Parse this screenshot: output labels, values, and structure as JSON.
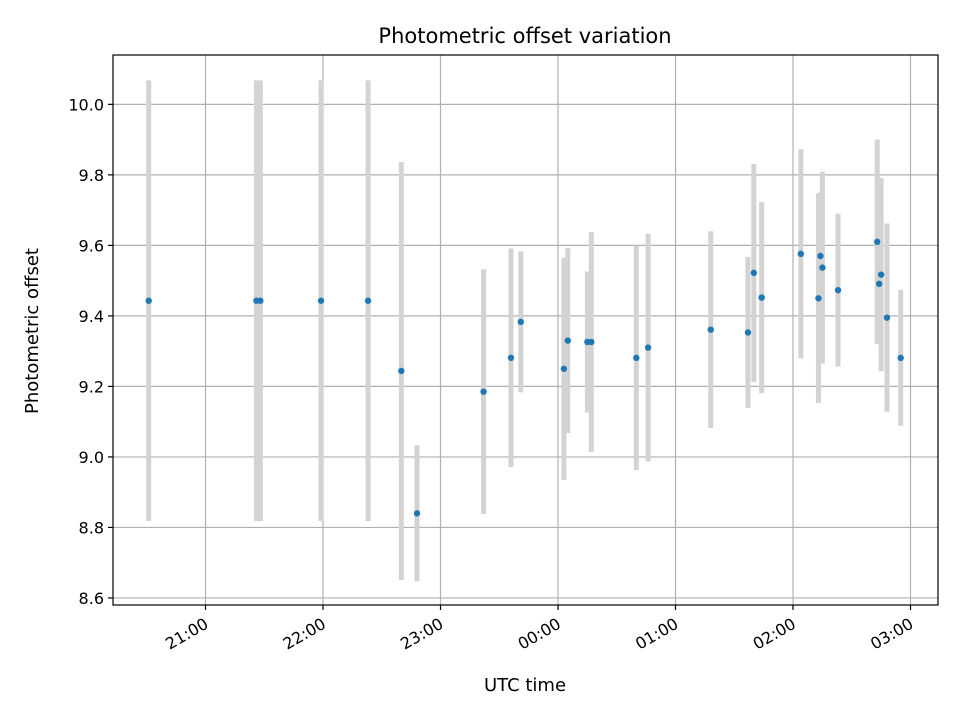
{
  "chart_data": {
    "type": "scatter",
    "title": "Photometric offset variation",
    "xlabel": "UTC time",
    "ylabel": "Photometric offset",
    "x_ticks": [
      "21:00",
      "22:00",
      "23:00",
      "00:00",
      "01:00",
      "02:00",
      "03:00"
    ],
    "y_ticks": [
      "8.6",
      "8.8",
      "9.0",
      "9.2",
      "9.4",
      "9.6",
      "9.8",
      "10.0"
    ],
    "ylim": [
      8.58,
      10.14
    ],
    "grid": true,
    "colors": {
      "marker": "#1f77b4",
      "errorbar": "#d3d3d3",
      "grid": "#b0b0b0"
    },
    "points": [
      {
        "t": "20:31",
        "y": 9.443,
        "yerr": 0.625
      },
      {
        "t": "21:26",
        "y": 9.443,
        "yerr": 0.625
      },
      {
        "t": "21:28",
        "y": 9.443,
        "yerr": 0.625
      },
      {
        "t": "21:59",
        "y": 9.443,
        "yerr": 0.625
      },
      {
        "t": "22:23",
        "y": 9.443,
        "yerr": 0.625
      },
      {
        "t": "22:40",
        "y": 9.244,
        "yerr": 0.593
      },
      {
        "t": "22:48",
        "y": 8.84,
        "yerr": 0.193
      },
      {
        "t": "23:22",
        "y": 9.185,
        "yerr": 0.347
      },
      {
        "t": "23:36",
        "y": 9.281,
        "yerr": 0.31
      },
      {
        "t": "23:41",
        "y": 9.383,
        "yerr": 0.2
      },
      {
        "t": "00:03",
        "y": 9.25,
        "yerr": 0.315
      },
      {
        "t": "00:05",
        "y": 9.33,
        "yerr": 0.262
      },
      {
        "t": "00:15",
        "y": 9.326,
        "yerr": 0.2
      },
      {
        "t": "00:17",
        "y": 9.326,
        "yerr": 0.312
      },
      {
        "t": "00:40",
        "y": 9.281,
        "yerr": 0.318
      },
      {
        "t": "00:46",
        "y": 9.31,
        "yerr": 0.323
      },
      {
        "t": "01:18",
        "y": 9.361,
        "yerr": 0.279
      },
      {
        "t": "01:37",
        "y": 9.353,
        "yerr": 0.214
      },
      {
        "t": "01:40",
        "y": 9.522,
        "yerr": 0.309
      },
      {
        "t": "01:44",
        "y": 9.452,
        "yerr": 0.271
      },
      {
        "t": "02:04",
        "y": 9.576,
        "yerr": 0.297
      },
      {
        "t": "02:13",
        "y": 9.45,
        "yerr": 0.297
      },
      {
        "t": "02:14",
        "y": 9.57,
        "yerr": 0.18
      },
      {
        "t": "02:15",
        "y": 9.537,
        "yerr": 0.272
      },
      {
        "t": "02:23",
        "y": 9.473,
        "yerr": 0.217
      },
      {
        "t": "02:43",
        "y": 9.61,
        "yerr": 0.29
      },
      {
        "t": "02:44",
        "y": 9.491,
        "yerr": 0.167
      },
      {
        "t": "02:45",
        "y": 9.517,
        "yerr": 0.274
      },
      {
        "t": "02:48",
        "y": 9.395,
        "yerr": 0.267
      },
      {
        "t": "02:55",
        "y": 9.281,
        "yerr": 0.193
      }
    ]
  }
}
